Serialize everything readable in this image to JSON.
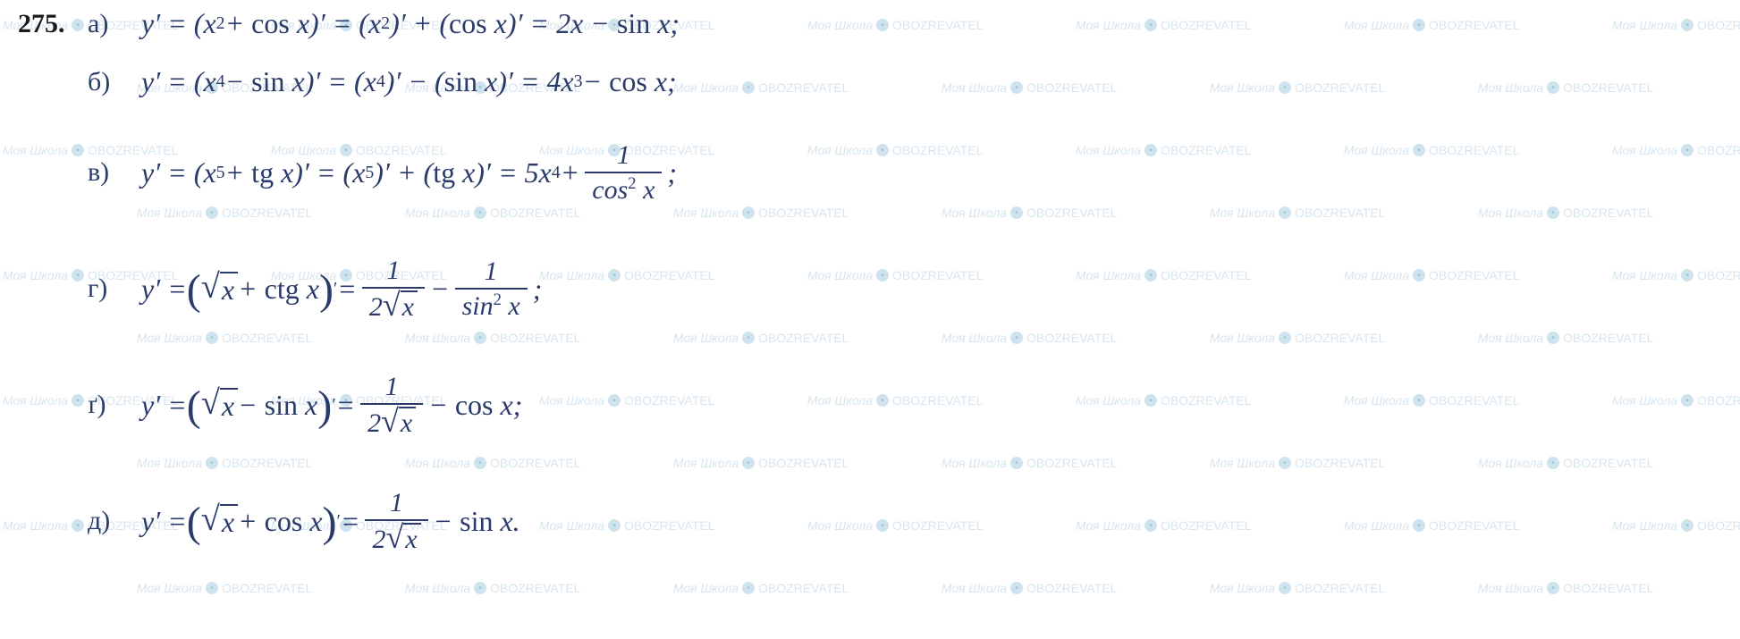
{
  "problem_number": "275.",
  "watermark": {
    "text1": "Моя Школа",
    "text2": "OBOZREVATEL",
    "color": "#d8e6ef",
    "fontSize": 14
  },
  "colors": {
    "math_text": "#2a3b6b",
    "number_text": "#1a1a1a",
    "background": "#ffffff"
  },
  "lines": [
    {
      "label": "а)",
      "segments": [
        "y′  =  (x",
        {
          "sup": "2"
        },
        "  +   cos  x)′  =  (x",
        {
          "sup": "2"
        },
        ")′  +  (cos  x)′  =  2x  −   sin  x;"
      ]
    },
    {
      "label": "б)",
      "segments": [
        "y′  =  (x",
        {
          "sup": "4"
        },
        "  −   sin  x)′   =  (x",
        {
          "sup": "4"
        },
        ")′  −  (sin  x)′  =  4x",
        {
          "sup": "3"
        },
        "  −   cos  x;"
      ]
    },
    {
      "label": "в)",
      "segments": [
        "y′  = (x",
        {
          "sup": "5"
        },
        "  + tg x)′ = (x",
        {
          "sup": "5"
        },
        ")′ + (tg x)′ = 5x",
        {
          "sup": "4"
        },
        "  + ",
        {
          "frac": {
            "num": "1",
            "den_html": "cos<sup>2</sup> <i>x</i>"
          }
        },
        " ;"
      ]
    },
    {
      "label": "г)",
      "segments": [
        "y′  = ",
        {
          "big": "("
        },
        {
          "sqrt": "x"
        },
        "  + ctg x",
        {
          "big": ")"
        },
        {
          "sup": "′"
        },
        "  =  ",
        {
          "frac": {
            "num": "1",
            "den_sqrt": "2√x"
          }
        },
        " − ",
        {
          "frac": {
            "num": "1",
            "den_html": "sin<sup>2</sup> <i>x</i>"
          }
        },
        " ;"
      ]
    },
    {
      "label": "ґ)",
      "segments": [
        "y′  = ",
        {
          "big": "("
        },
        {
          "sqrt": "x"
        },
        "  − sin x",
        {
          "big": ")"
        },
        {
          "sup": "′"
        },
        "  =  ",
        {
          "frac": {
            "num": "1",
            "den_sqrt": "2√x"
          }
        },
        " −  cos x;"
      ]
    },
    {
      "label": "д)",
      "segments": [
        "y′  = ",
        {
          "big": "("
        },
        {
          "sqrt": "x"
        },
        "  + cos x",
        {
          "big": ")"
        },
        {
          "sup": "′"
        },
        "  =  ",
        {
          "frac": {
            "num": "1",
            "den_sqrt": "2√x"
          }
        },
        " −  sin x."
      ]
    }
  ]
}
